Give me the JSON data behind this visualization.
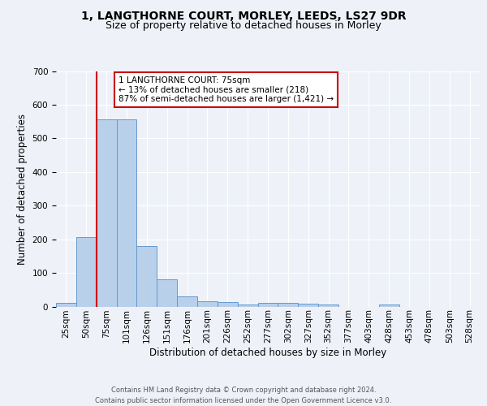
{
  "title1": "1, LANGTHORNE COURT, MORLEY, LEEDS, LS27 9DR",
  "title2": "Size of property relative to detached houses in Morley",
  "xlabel": "Distribution of detached houses by size in Morley",
  "ylabel": "Number of detached properties",
  "categories": [
    "25sqm",
    "50sqm",
    "75sqm",
    "101sqm",
    "126sqm",
    "151sqm",
    "176sqm",
    "201sqm",
    "226sqm",
    "252sqm",
    "277sqm",
    "302sqm",
    "327sqm",
    "352sqm",
    "377sqm",
    "403sqm",
    "428sqm",
    "453sqm",
    "478sqm",
    "503sqm",
    "528sqm"
  ],
  "values": [
    12,
    207,
    557,
    557,
    180,
    80,
    30,
    15,
    13,
    6,
    10,
    10,
    8,
    5,
    0,
    0,
    5,
    0,
    0,
    0,
    0
  ],
  "bar_color": "#b8d0ea",
  "bar_edge_color": "#6699cc",
  "highlight_index": 2,
  "highlight_color": "#cc0000",
  "annotation_text": "1 LANGTHORNE COURT: 75sqm\n← 13% of detached houses are smaller (218)\n87% of semi-detached houses are larger (1,421) →",
  "annotation_box_color": "#ffffff",
  "annotation_box_edge": "#cc0000",
  "ylim": [
    0,
    700
  ],
  "yticks": [
    0,
    100,
    200,
    300,
    400,
    500,
    600,
    700
  ],
  "footer1": "Contains HM Land Registry data © Crown copyright and database right 2024.",
  "footer2": "Contains public sector information licensed under the Open Government Licence v3.0.",
  "background_color": "#eef2f8",
  "plot_background": "#eef2f8",
  "grid_color": "#ffffff",
  "title_fontsize": 10,
  "subtitle_fontsize": 9,
  "label_fontsize": 8.5,
  "tick_fontsize": 7.5,
  "footer_fontsize": 6.0
}
